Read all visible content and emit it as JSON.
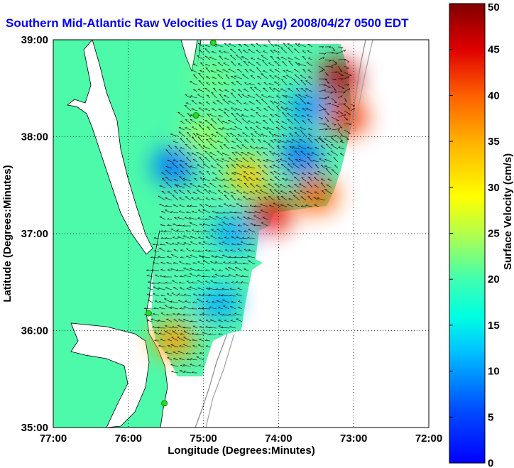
{
  "chart_data": {
    "type": "heatmap",
    "title": "Southern Mid-Atlantic Raw Velocities (1 Day Avg) 2008/04/27 0500 EDT",
    "xlabel": "Longitude (Degrees:Minutes)",
    "ylabel": "Latitude (Degrees:Minutes)",
    "x_ticks": [
      "77:00",
      "76:00",
      "75:00",
      "74:00",
      "73:00",
      "72:00"
    ],
    "y_ticks": [
      "39:00",
      "38:00",
      "37:00",
      "36:00",
      "35:00"
    ],
    "xlim": [
      -77,
      -72
    ],
    "ylim": [
      35,
      39
    ],
    "grid": "dotted",
    "colorbar": {
      "label": "Surface Velocity (cm/s)",
      "range": [
        0,
        50
      ],
      "ticks": [
        "0",
        "5",
        "10",
        "15",
        "20",
        "25",
        "30",
        "35",
        "40",
        "45",
        "50"
      ],
      "colormap": "jet"
    },
    "velocity_regions": [
      {
        "lon": -73.2,
        "lat": 38.6,
        "speed": 47
      },
      {
        "lon": -73.1,
        "lat": 38.2,
        "speed": 42
      },
      {
        "lon": -74.1,
        "lat": 37.2,
        "speed": 44
      },
      {
        "lon": -73.5,
        "lat": 37.4,
        "speed": 40
      },
      {
        "lon": -74.4,
        "lat": 37.6,
        "speed": 33
      },
      {
        "lon": -73.6,
        "lat": 38.3,
        "speed": 10
      },
      {
        "lon": -73.7,
        "lat": 37.8,
        "speed": 8
      },
      {
        "lon": -75.4,
        "lat": 37.7,
        "speed": 8
      },
      {
        "lon": -74.6,
        "lat": 37.0,
        "speed": 11
      },
      {
        "lon": -75.4,
        "lat": 35.9,
        "speed": 36
      },
      {
        "lon": -74.8,
        "lat": 36.3,
        "speed": 11
      },
      {
        "lon": -75.0,
        "lat": 36.6,
        "speed": 20
      },
      {
        "lon": -75.0,
        "lat": 38.0,
        "speed": 24
      },
      {
        "lon": -74.9,
        "lat": 38.6,
        "speed": 22
      }
    ],
    "hf_radar_sites": [
      {
        "lon": -74.87,
        "lat": 38.97
      },
      {
        "lon": -75.1,
        "lat": 38.22
      },
      {
        "lon": -75.73,
        "lat": 36.18
      },
      {
        "lon": -75.52,
        "lat": 35.25
      }
    ]
  }
}
